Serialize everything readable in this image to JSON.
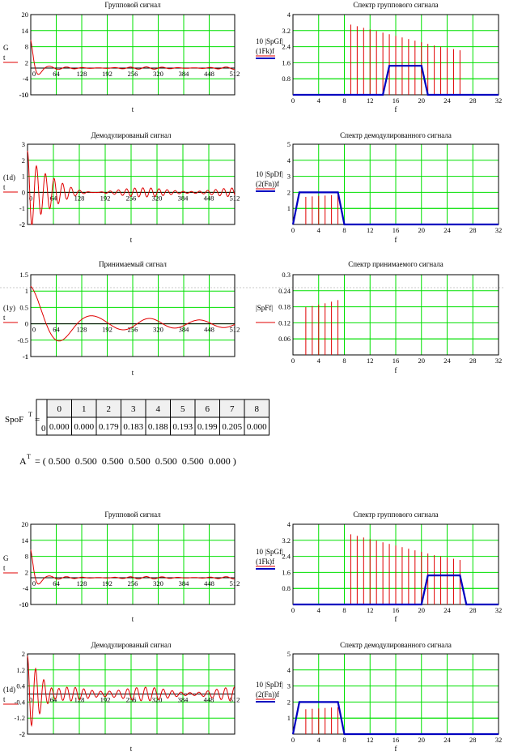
{
  "colors": {
    "grid": "#00e000",
    "signal": "#e00000",
    "window": "#0000c0"
  },
  "chart_data": [
    {
      "id": "p1",
      "type": "line",
      "title": "Групповой сигнал",
      "xlabel": "t",
      "ylabel_lines": [
        "G",
        "t"
      ],
      "xlim": [
        0,
        512
      ],
      "ylim": [
        -10,
        20
      ],
      "xticks": [
        0,
        64,
        128,
        192,
        256,
        320,
        384,
        448,
        512
      ],
      "yticks": [
        -10,
        -4,
        2,
        8,
        14,
        20
      ],
      "series": [
        {
          "kind": "damped",
          "a0": 10.5,
          "decay": 14,
          "period": 45,
          "tail": 0.45,
          "tail_period": 40
        }
      ]
    },
    {
      "id": "p2",
      "type": "bar",
      "title": "Спектр группового сигнала",
      "xlabel": "f",
      "ylabel_lines": [
        "10 |SpGf|",
        "(1Fk)f"
      ],
      "xlim": [
        0,
        32
      ],
      "ylim": [
        0,
        4
      ],
      "xticks": [
        0,
        4,
        8,
        12,
        16,
        20,
        24,
        28,
        32
      ],
      "yticks": [
        0.8,
        1.6,
        2.4,
        3.2,
        4
      ],
      "stems": {
        "x": [
          9,
          10,
          11,
          12,
          13,
          14,
          15,
          16,
          17,
          18,
          19,
          20,
          21,
          22,
          23,
          24,
          25,
          26
        ],
        "y": [
          3.5,
          3.42,
          3.34,
          3.26,
          3.18,
          3.1,
          3.02,
          2.94,
          2.86,
          2.78,
          2.7,
          2.62,
          2.54,
          2.46,
          2.4,
          2.34,
          2.28,
          2.22
        ]
      },
      "window": {
        "x": [
          0,
          14,
          15,
          20,
          21,
          32
        ],
        "y": [
          0,
          0,
          1.45,
          1.45,
          0,
          0
        ]
      }
    },
    {
      "id": "p3",
      "type": "line",
      "title": "Демодулированый сигнал",
      "xlabel": "t",
      "ylabel_lines": [
        "(1d)",
        "t"
      ],
      "xlim": [
        0,
        512
      ],
      "ylim": [
        -2,
        3
      ],
      "xticks": [
        0,
        64,
        128,
        192,
        256,
        320,
        384,
        448,
        512
      ],
      "yticks": [
        -2,
        -1,
        0,
        1,
        2,
        3
      ],
      "series": [
        {
          "kind": "damped",
          "a0": 2.6,
          "decay": 45,
          "period": 22,
          "tail": 0.28,
          "tail_period": 20
        }
      ]
    },
    {
      "id": "p4",
      "type": "bar",
      "title": "Спектр демодулированного сигнала",
      "xlabel": "f",
      "ylabel_lines": [
        "10 |SpDf|",
        "(2(Fn))f"
      ],
      "xlim": [
        0,
        32
      ],
      "ylim": [
        0,
        5
      ],
      "xticks": [
        0,
        4,
        8,
        12,
        16,
        20,
        24,
        28,
        32
      ],
      "yticks": [
        1,
        2,
        3,
        4,
        5
      ],
      "stems": {
        "x": [
          2,
          3,
          4,
          5,
          6,
          7
        ],
        "y": [
          1.72,
          1.75,
          1.78,
          1.8,
          1.83,
          1.86
        ]
      },
      "window": {
        "x": [
          0,
          1,
          7,
          8,
          32
        ],
        "y": [
          0,
          2,
          2,
          0,
          0
        ]
      }
    },
    {
      "id": "p5",
      "type": "line",
      "title": "Принимаемый сигнал",
      "xlabel": "t",
      "ylabel_lines": [
        "(1y)",
        "t"
      ],
      "xlim": [
        0,
        512
      ],
      "ylim": [
        -1,
        1.5
      ],
      "xticks": [
        0,
        64,
        128,
        192,
        256,
        320,
        384,
        448,
        512
      ],
      "yticks": [
        -1,
        -0.5,
        0,
        0.5,
        1,
        1.5
      ],
      "series": [
        {
          "kind": "smooth",
          "a0": 1.15,
          "decay": 95,
          "period": 155,
          "tail": 0.12,
          "tail_period": 125
        }
      ]
    },
    {
      "id": "p6",
      "type": "bar",
      "title": "Спектр принимаемого сигнала",
      "xlabel": "f",
      "ylabel_lines": [
        "|SpFf|",
        ""
      ],
      "xlim": [
        0,
        32
      ],
      "ylim": [
        0,
        0.3
      ],
      "xticks": [
        0,
        4,
        8,
        12,
        16,
        20,
        24,
        28,
        32
      ],
      "yticks": [
        0.06,
        0.12,
        0.18,
        0.24,
        0.3
      ],
      "stems": {
        "x": [
          2,
          3,
          4,
          5,
          6,
          7
        ],
        "y": [
          0.179,
          0.183,
          0.188,
          0.193,
          0.199,
          0.205
        ]
      },
      "window": null
    },
    {
      "id": "p7",
      "type": "line",
      "title": "Групповой сигнал",
      "xlabel": "t",
      "ylabel_lines": [
        "G",
        "t"
      ],
      "xlim": [
        0,
        512
      ],
      "ylim": [
        -10,
        20
      ],
      "xticks": [
        0,
        64,
        128,
        192,
        256,
        320,
        384,
        448,
        512
      ],
      "yticks": [
        -10,
        -4,
        2,
        8,
        14,
        20
      ],
      "series": [
        {
          "kind": "damped",
          "a0": 10.5,
          "decay": 14,
          "period": 45,
          "tail": 0.45,
          "tail_period": 40
        }
      ]
    },
    {
      "id": "p8",
      "type": "bar",
      "title": "Спектр группового сигнала",
      "xlabel": "f",
      "ylabel_lines": [
        "10 |SpGf|",
        "(1Fk)f"
      ],
      "xlim": [
        0,
        32
      ],
      "ylim": [
        0,
        4
      ],
      "xticks": [
        0,
        4,
        8,
        12,
        16,
        20,
        24,
        28,
        32
      ],
      "yticks": [
        0.8,
        1.6,
        2.4,
        3.2,
        4
      ],
      "stems": {
        "x": [
          9,
          10,
          11,
          12,
          13,
          14,
          15,
          16,
          17,
          18,
          19,
          20,
          21,
          22,
          23,
          24,
          25,
          26
        ],
        "y": [
          3.5,
          3.42,
          3.34,
          3.26,
          3.18,
          3.1,
          3.02,
          2.94,
          2.86,
          2.78,
          2.7,
          2.62,
          2.54,
          2.46,
          2.4,
          2.34,
          2.28,
          2.22
        ]
      },
      "window": {
        "x": [
          0,
          20,
          21,
          26,
          27,
          32
        ],
        "y": [
          0,
          0,
          1.45,
          1.45,
          0,
          0
        ]
      }
    },
    {
      "id": "p9",
      "type": "line",
      "title": "Демодулированый сигнал",
      "xlabel": "t",
      "ylabel_lines": [
        "(1d)",
        "t"
      ],
      "xlim": [
        0,
        512
      ],
      "ylim": [
        -2,
        2
      ],
      "xticks": [
        0,
        64,
        128,
        192,
        256,
        320,
        384,
        448,
        512
      ],
      "yticks": [
        -2,
        -1.2,
        -0.4,
        0.4,
        1.2,
        2
      ],
      "series": [
        {
          "kind": "damped",
          "a0": 1.9,
          "decay": 55,
          "period": 20,
          "tail": 0.35,
          "tail_period": 22
        }
      ]
    },
    {
      "id": "p10",
      "type": "bar",
      "title": "Спектр демодулированного сигнала",
      "xlabel": "f",
      "ylabel_lines": [
        "10 |SpDf|",
        "(2(Fn))f"
      ],
      "xlim": [
        0,
        32
      ],
      "ylim": [
        0,
        5
      ],
      "xticks": [
        0,
        4,
        8,
        12,
        16,
        20,
        24,
        28,
        32
      ],
      "yticks": [
        1,
        2,
        3,
        4,
        5
      ],
      "stems": {
        "x": [
          2,
          3,
          4,
          5,
          6,
          7
        ],
        "y": [
          1.55,
          1.58,
          1.6,
          1.63,
          1.66,
          1.68
        ]
      },
      "window": {
        "x": [
          0,
          1,
          7,
          8,
          32
        ],
        "y": [
          0,
          2,
          2,
          0,
          0
        ]
      }
    }
  ],
  "spo_table": {
    "label": "SpoF",
    "sup": "T",
    "eq": "=",
    "row_index": "0",
    "headers": [
      "0",
      "1",
      "2",
      "3",
      "4",
      "5",
      "6",
      "7",
      "8"
    ],
    "values": [
      "0.000",
      "0.000",
      "0.179",
      "0.183",
      "0.188",
      "0.193",
      "0.199",
      "0.205",
      "0.000"
    ]
  },
  "a_vector": {
    "label": "A",
    "sup": "T",
    "text": "= ( 0.500  0.500  0.500  0.500  0.500  0.500  0.000 )"
  }
}
